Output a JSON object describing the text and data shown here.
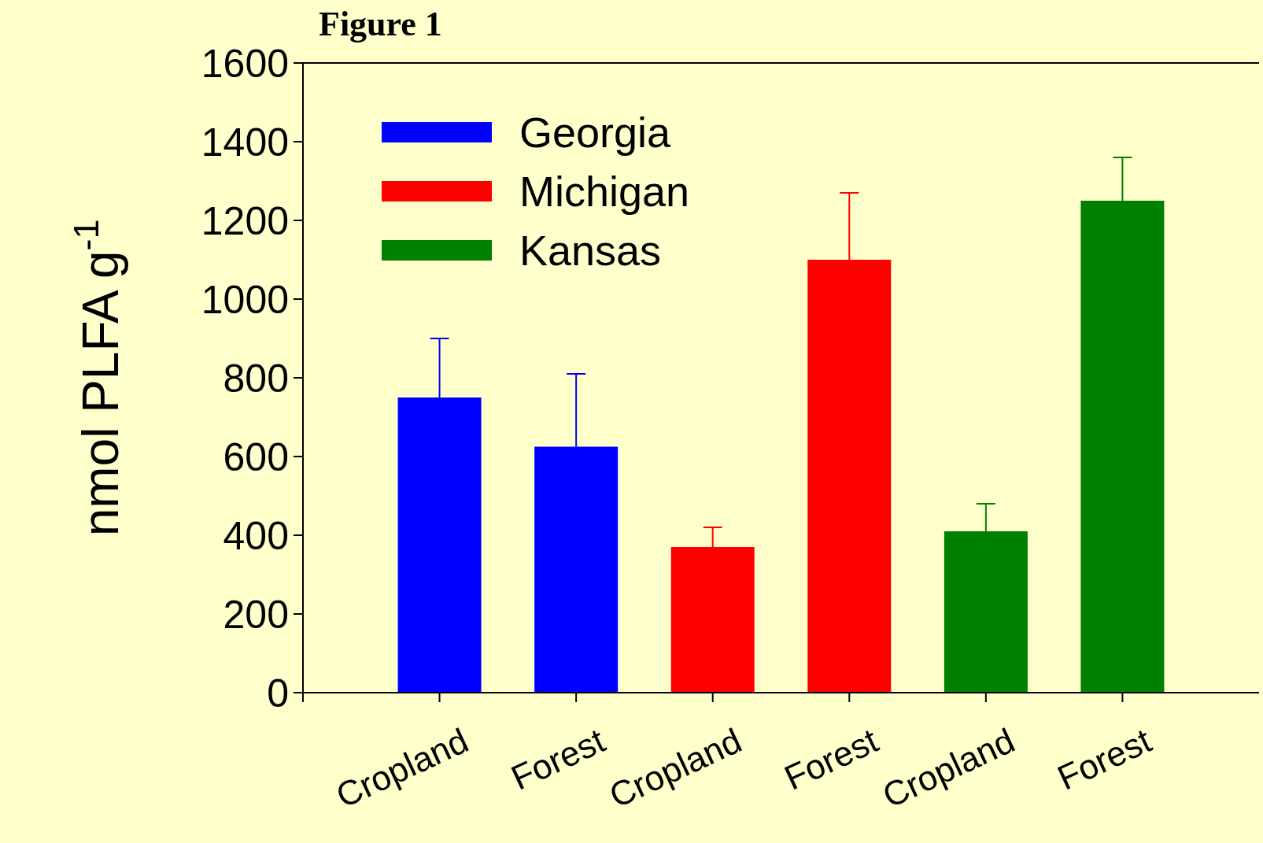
{
  "chart_data": {
    "type": "bar",
    "title": "Figure 1",
    "ylabel": "nmol PLFA g$^{-1}$",
    "categories": [
      "Cropland",
      "Forest",
      "Cropland",
      "Forest",
      "Cropland",
      "Forest"
    ],
    "series": [
      {
        "name": "Georgia",
        "color": "#0000ff",
        "values": [
          750,
          625,
          null,
          null,
          null,
          null
        ],
        "errors": [
          [
            750,
            900
          ],
          [
            625,
            810
          ],
          null,
          null,
          null,
          null
        ]
      },
      {
        "name": "Michigan",
        "color": "#ff0000",
        "values": [
          null,
          null,
          370,
          1100,
          null,
          null
        ],
        "errors": [
          null,
          null,
          [
            370,
            420
          ],
          [
            1100,
            1270
          ],
          null,
          null
        ]
      },
      {
        "name": "Kansas",
        "color": "#008000",
        "values": [
          null,
          null,
          null,
          null,
          410,
          1250
        ],
        "errors": [
          null,
          null,
          null,
          null,
          [
            410,
            480
          ],
          [
            1250,
            1360
          ]
        ]
      }
    ],
    "ylim": [
      0,
      1600
    ],
    "yticks": [
      0,
      200,
      400,
      600,
      800,
      1000,
      1200,
      1400,
      1600
    ],
    "legend": "top left"
  }
}
